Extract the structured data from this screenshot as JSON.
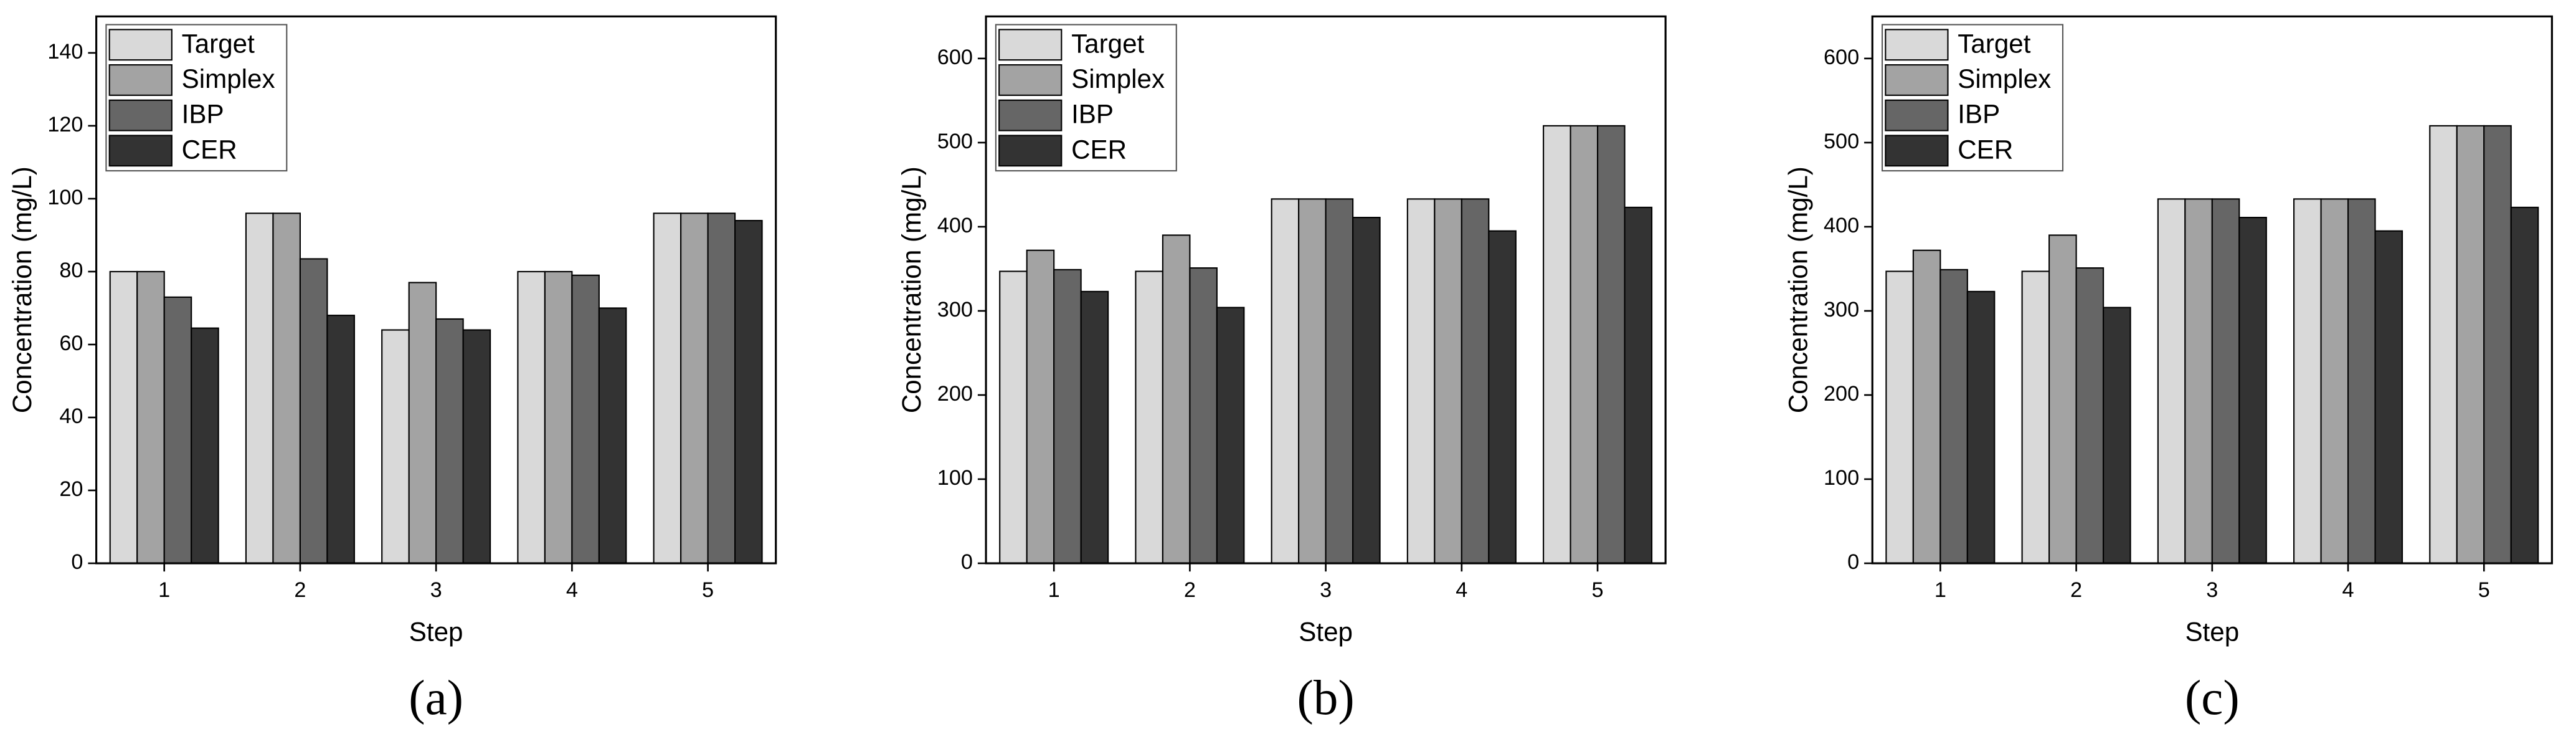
{
  "chart_data": [
    {
      "type": "bar",
      "caption": "(a)",
      "xlabel": "Step",
      "ylabel": "Concentration (mg/L)",
      "categories": [
        "1",
        "2",
        "3",
        "4",
        "5"
      ],
      "series": [
        {
          "name": "Target",
          "color": "#d9d9d9",
          "values": [
            80,
            96,
            64,
            80,
            96
          ]
        },
        {
          "name": "Simplex",
          "color": "#a3a3a3",
          "values": [
            80,
            96,
            77,
            80,
            96
          ]
        },
        {
          "name": "IBP",
          "color": "#666666",
          "values": [
            73,
            83.5,
            67,
            79,
            96
          ]
        },
        {
          "name": "CER",
          "color": "#333333",
          "values": [
            64.5,
            68,
            64,
            70,
            94
          ]
        }
      ],
      "ylim": [
        0,
        150
      ],
      "yticks": [
        0,
        20,
        40,
        60,
        80,
        100,
        120,
        140
      ],
      "legend": "upper left"
    },
    {
      "type": "bar",
      "caption": "(b)",
      "xlabel": "Step",
      "ylabel": "Concentration (mg/L)",
      "categories": [
        "1",
        "2",
        "3",
        "4",
        "5"
      ],
      "series": [
        {
          "name": "Target",
          "color": "#d9d9d9",
          "values": [
            347,
            347,
            433,
            433,
            520
          ]
        },
        {
          "name": "Simplex",
          "color": "#a3a3a3",
          "values": [
            372,
            390,
            433,
            433,
            520
          ]
        },
        {
          "name": "IBP",
          "color": "#666666",
          "values": [
            349,
            351,
            433,
            433,
            520
          ]
        },
        {
          "name": "CER",
          "color": "#333333",
          "values": [
            323,
            304,
            411,
            395,
            423
          ]
        }
      ],
      "ylim": [
        0,
        650
      ],
      "yticks": [
        0,
        100,
        200,
        300,
        400,
        500,
        600
      ],
      "legend": "upper left"
    },
    {
      "type": "bar",
      "caption": "(c)",
      "xlabel": "Step",
      "ylabel": "Concentration (mg/L)",
      "categories": [
        "1",
        "2",
        "3",
        "4",
        "5"
      ],
      "series": [
        {
          "name": "Target",
          "color": "#d9d9d9",
          "values": [
            347,
            347,
            433,
            433,
            520
          ]
        },
        {
          "name": "Simplex",
          "color": "#a3a3a3",
          "values": [
            372,
            390,
            433,
            433,
            520
          ]
        },
        {
          "name": "IBP",
          "color": "#666666",
          "values": [
            349,
            351,
            433,
            433,
            520
          ]
        },
        {
          "name": "CER",
          "color": "#333333",
          "values": [
            323,
            304,
            411,
            395,
            423
          ]
        }
      ],
      "ylim": [
        0,
        650
      ],
      "yticks": [
        0,
        100,
        200,
        300,
        400,
        500,
        600
      ],
      "legend": "upper left"
    }
  ]
}
